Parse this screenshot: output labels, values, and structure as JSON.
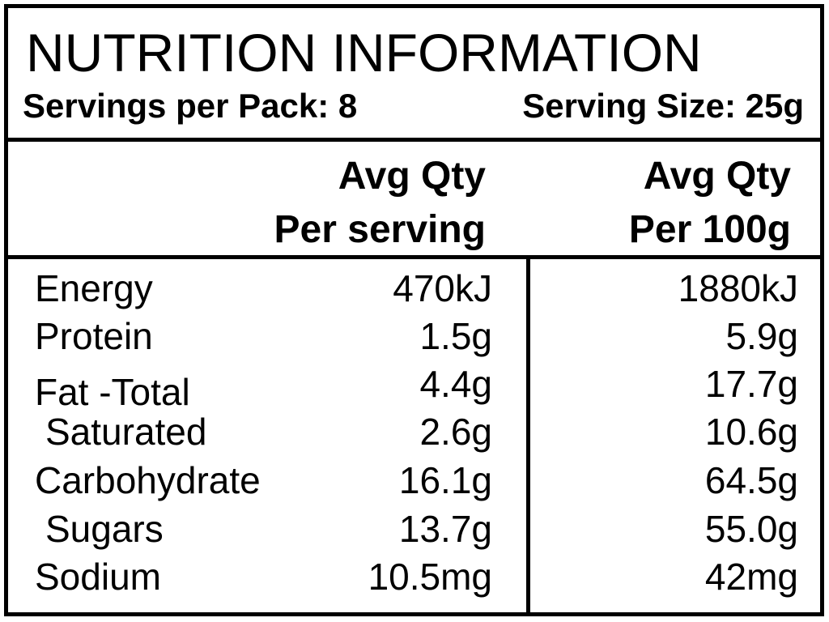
{
  "header": {
    "title": "NUTRITION INFORMATION",
    "servings_per_pack": "Servings per Pack: 8",
    "serving_size": "Serving Size: 25g"
  },
  "columns": {
    "per_serving_line1": "Avg Qty",
    "per_serving_line2": "Per serving",
    "per_100g_line1": "Avg Qty",
    "per_100g_line2": "Per 100g"
  },
  "rows": [
    {
      "label": "Energy",
      "per_serving": "470kJ",
      "per_100g": "1880kJ"
    },
    {
      "label": "Protein",
      "per_serving": "1.5g",
      "per_100g": "5.9g"
    },
    {
      "label": "Fat -Total",
      "per_serving": "4.4g",
      "per_100g": "17.7g"
    },
    {
      "label": "Saturated",
      "per_serving": "2.6g",
      "per_100g": "10.6g"
    },
    {
      "label": "Carbohydrate",
      "per_serving": "16.1g",
      "per_100g": "64.5g"
    },
    {
      "label": "Sugars",
      "per_serving": "13.7g",
      "per_100g": "55.0g"
    },
    {
      "label": "Sodium",
      "per_serving": "10.5mg",
      "per_100g": "42mg"
    }
  ]
}
